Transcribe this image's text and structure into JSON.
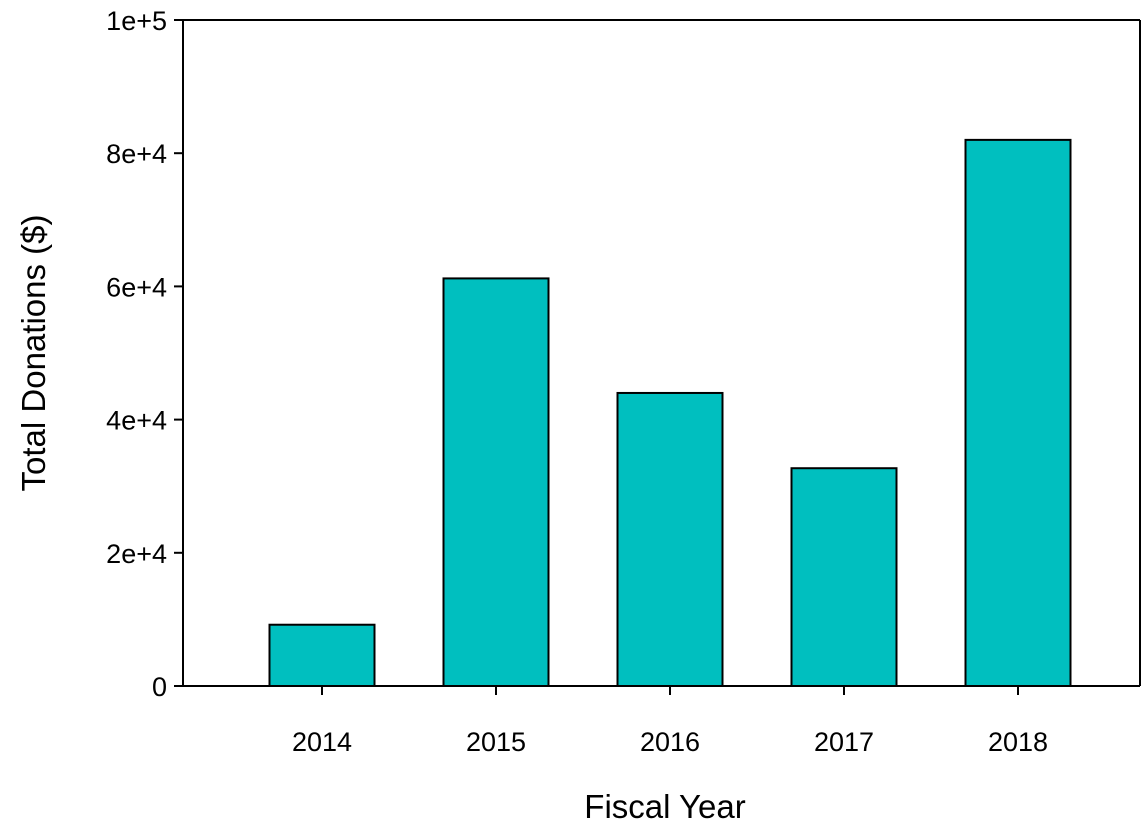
{
  "chart_data": {
    "type": "bar",
    "title": "",
    "xlabel": "Fiscal Year",
    "ylabel": "Total Donations ($)",
    "categories": [
      "2014",
      "2015",
      "2016",
      "2017",
      "2018"
    ],
    "values": [
      9200,
      61200,
      44000,
      32700,
      82000
    ],
    "ylim": [
      0,
      100000
    ],
    "yticks": [
      0,
      20000,
      40000,
      60000,
      80000,
      100000
    ],
    "ytick_labels": [
      "0",
      "2e+4",
      "4e+4",
      "6e+4",
      "8e+4",
      "1e+5"
    ],
    "grid": false,
    "legend": "none",
    "bar_color": "#00BFBF",
    "bar_edge_color": "#000000"
  }
}
